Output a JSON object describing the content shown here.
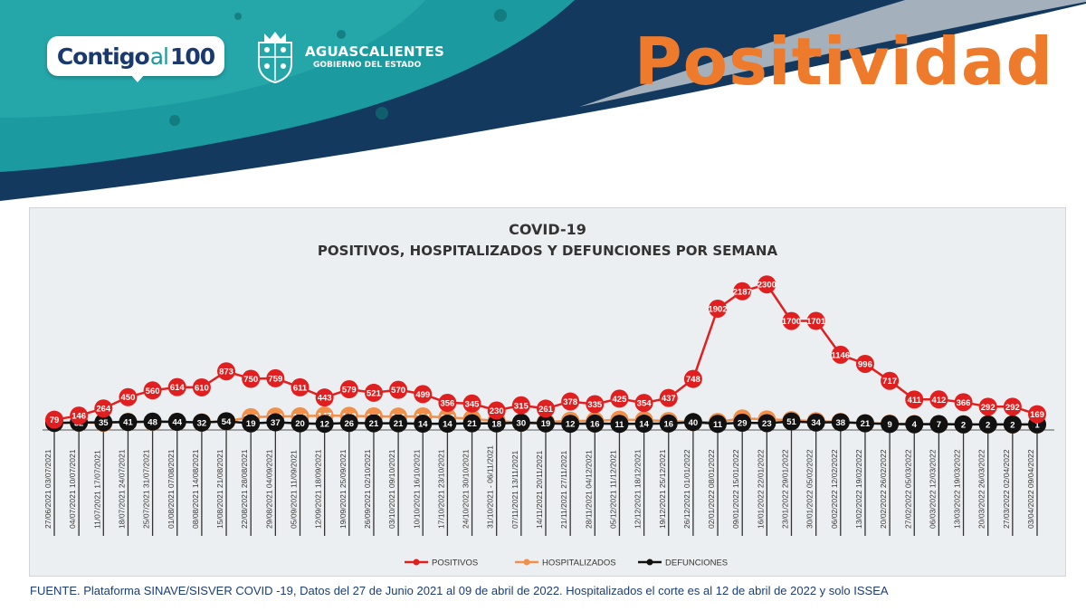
{
  "header": {
    "logo_text": {
      "part1": "Contigo",
      "part2": "al",
      "part3": "100"
    },
    "government_name": "AGUASCALIENTES",
    "government_subtitle": "GOBIERNO DEL ESTADO",
    "page_title": "Positividad"
  },
  "colors": {
    "positivos": "#e02020",
    "hospitalizados": "#f0904a",
    "defunciones": "#111111",
    "title_orange": "#ee7b2c",
    "banner_teal": "#1b9aa0",
    "banner_navy": "#13395f",
    "source_text": "#1c3d74"
  },
  "chart_data": {
    "type": "line",
    "title": "COVID-19",
    "subtitle": "POSITIVOS, HOSPITALIZADOS Y DEFUNCIONES POR SEMANA",
    "legend_position": "bottom",
    "categories": [
      "27/06/2021 03/07/2021",
      "04/07/2021 10/07/2021",
      "11/07/2021 17/07/2021",
      "18/07/2021 24/07/2021",
      "25/07/2021 31/07/2021",
      "01/08/2021 07/08/2021",
      "08/08/2021 14/08/2021",
      "15/08/2021 21/08/2021",
      "22/08/2021 28/08/2021",
      "29/08/2021 04/09/2021",
      "05/09/2021 11/09/2021",
      "12/09/2021 18/09/2021",
      "19/09/2021 25/09/2021",
      "26/09/2021 02/10/2021",
      "03/10/2021 09/10/2021",
      "10/10/2021 16/10/2021",
      "17/10/2021 23/10/2021",
      "24/10/2021 30/10/2021",
      "31/10/2021 - 06/11/2021",
      "07/11/2021 13/11/2021",
      "14/11/2021 20/11/2021",
      "21/11/2021 27/11/2021",
      "28/11/2021 04/12/2021",
      "05/12/2021 11/12/2021",
      "12/12/2021 18/12/2021",
      "19/12/2021 25/12/2021",
      "26/12/2021 01/01/2022",
      "02/01/2022 08/01/2022",
      "09/01/2022 15/01/2022",
      "16/01/2022 22/01/2022",
      "23/01/2022 29/01/2022",
      "30/01/2022 05/02/2022",
      "06/02/2022 12/02/2022",
      "13/02/2022 19/02/2022",
      "20/02/2022 26/02/2022",
      "27/02/2022 05/03/2022",
      "06/03/2022 12/03/2022",
      "13/03/2022 19/03/2022",
      "20/03/2022 26/03/2022",
      "27/03/2022 02/04/2022",
      "03/04/2022 09/04/2022"
    ],
    "series": [
      {
        "name": "POSITIVOS",
        "values": [
          79,
          146,
          264,
          450,
          560,
          614,
          610,
          873,
          750,
          759,
          611,
          443,
          579,
          521,
          570,
          499,
          356,
          345,
          230,
          315,
          261,
          378,
          335,
          425,
          354,
          437,
          748,
          1902,
          2187,
          2300,
          1700,
          1701,
          1146,
          996,
          717,
          411,
          412,
          366,
          292,
          292,
          169
        ]
      },
      {
        "name": "HOSPITALIZADOS",
        "values": [
          27,
          33,
          26,
          42,
          40,
          44,
          36,
          52,
          120,
          132,
          136,
          147,
          143,
          134,
          131,
          134,
          118,
          93,
          60,
          30,
          39,
          63,
          59,
          80,
          73,
          58,
          40,
          43,
          100,
          84,
          73,
          55,
          43,
          22,
          15,
          10,
          8,
          5,
          3,
          2,
          2
        ]
      },
      {
        "name": "DEFUNCIONES",
        "values": [
          26,
          32,
          35,
          41,
          48,
          44,
          32,
          54,
          19,
          37,
          20,
          12,
          26,
          21,
          21,
          14,
          14,
          21,
          18,
          30,
          19,
          12,
          16,
          11,
          14,
          16,
          40,
          11,
          29,
          23,
          51,
          34,
          38,
          21,
          9,
          4,
          7,
          2,
          2,
          2,
          1
        ]
      }
    ],
    "ylim": [
      0,
      2600
    ],
    "grid": false
  },
  "footer": {
    "source": "FUENTE. Plataforma SINAVE/SISVER COVID -19, Datos del 27 de Junio 2021 al 09 de abril de 2022.  Hospitalizados el corte es al 12 de abril de 2022 y solo ISSEA"
  }
}
